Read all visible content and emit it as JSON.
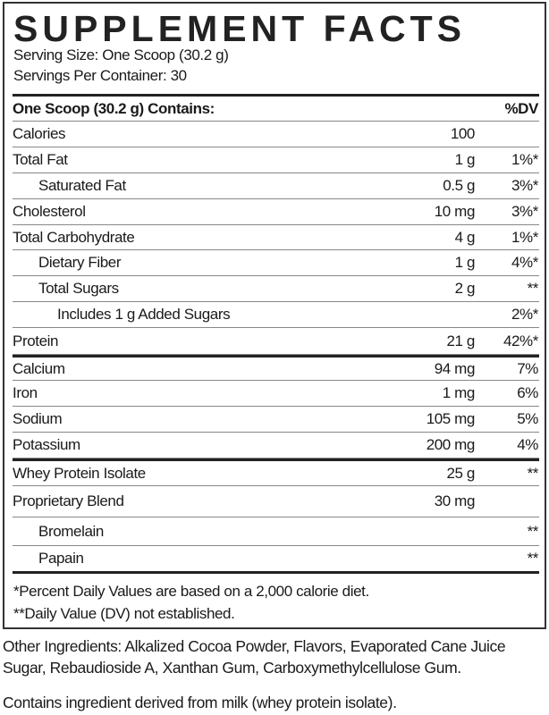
{
  "title": "SUPPLEMENT FACTS",
  "serving_size": "Serving Size: One Scoop (30.2 g)",
  "servings_per_container": "Servings Per Container: 30",
  "header": {
    "label": "One Scoop (30.2 g) Contains:",
    "dv": "%DV"
  },
  "rows": [
    {
      "name": "Calories",
      "amount": "100",
      "dv": ""
    },
    {
      "name": "Total Fat",
      "amount": "1 g",
      "dv": "1%*"
    },
    {
      "name": "Saturated Fat",
      "amount": "0.5 g",
      "dv": "3%*"
    },
    {
      "name": "Cholesterol",
      "amount": "10 mg",
      "dv": "3%*"
    },
    {
      "name": "Total Carbohydrate",
      "amount": "4 g",
      "dv": "1%*"
    },
    {
      "name": "Dietary Fiber",
      "amount": "1 g",
      "dv": "4%*"
    },
    {
      "name": "Total Sugars",
      "amount": "2 g",
      "dv": "**"
    },
    {
      "name": "Includes 1 g Added Sugars",
      "amount": "",
      "dv": "2%*"
    },
    {
      "name": "Protein",
      "amount": "21 g",
      "dv": "42%*"
    },
    {
      "name": "Calcium",
      "amount": "94 mg",
      "dv": "7%"
    },
    {
      "name": "Iron",
      "amount": "1 mg",
      "dv": "6%"
    },
    {
      "name": "Sodium",
      "amount": "105 mg",
      "dv": "5%"
    },
    {
      "name": "Potassium",
      "amount": "200 mg",
      "dv": "4%"
    },
    {
      "name": "Whey Protein Isolate",
      "amount": "25 g",
      "dv": "**"
    },
    {
      "name": "Proprietary Blend",
      "amount": "30 mg",
      "dv": ""
    },
    {
      "name": "Bromelain",
      "amount": "",
      "dv": "**"
    },
    {
      "name": "Papain",
      "amount": "",
      "dv": "**"
    }
  ],
  "footnotes": [
    "*Percent Daily Values are based on a 2,000 calorie diet.",
    "**Daily Value (DV) not established."
  ],
  "other_ingredients": [
    "Other Ingredients: Alkalized Cocoa Powder, Flavors, Evaporated Cane Juice",
    "Sugar, Rebaudioside A, Xanthan Gum, Carboxymethylcellulose Gum."
  ],
  "allergen": "Contains ingredient derived from milk (whey protein isolate)."
}
